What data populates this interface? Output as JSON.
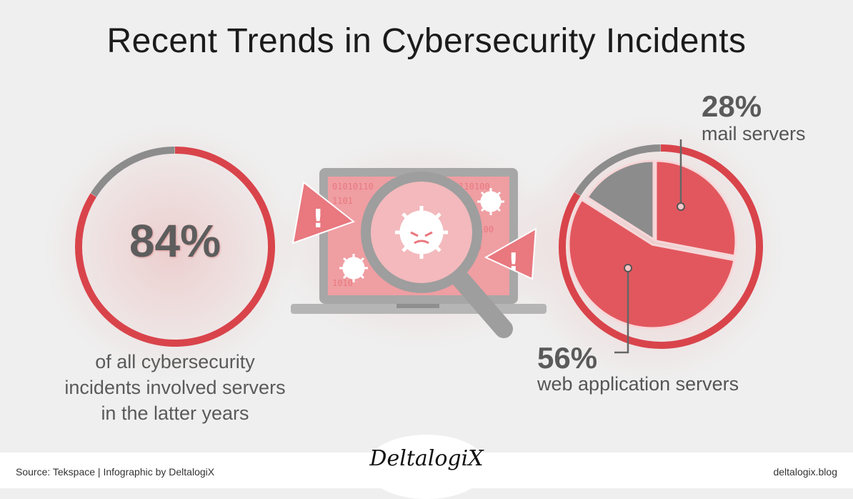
{
  "title": "Recent Trends in Cybersecurity Incidents",
  "left_stat": {
    "value": "84%",
    "caption_lines": [
      "of all cybersecurity",
      "incidents involved servers",
      "in the latter years"
    ]
  },
  "right_labels": {
    "mail": {
      "pct": "28%",
      "name": "mail servers"
    },
    "web": {
      "pct": "56%",
      "name": "web application servers"
    }
  },
  "chart_data": [
    {
      "type": "pie",
      "title": "",
      "labels": [
        "incidents involving servers",
        "other"
      ],
      "values": [
        84,
        16
      ],
      "colors": [
        "#d9444b",
        "#8c8c8c"
      ]
    },
    {
      "type": "pie",
      "title": "",
      "labels": [
        "mail servers",
        "web application servers",
        "other"
      ],
      "values": [
        28,
        56,
        16
      ],
      "colors": [
        "#d9444b",
        "#d9444b",
        "#8c8c8c"
      ]
    }
  ],
  "footer": {
    "source": "Source: Tekspace | Infographic by DeltalogiX",
    "logo": "DeltalogiX",
    "site": "deltalogix.blog"
  },
  "colors": {
    "accent": "#d9444b",
    "gray": "#8c8c8c",
    "light_red": "#f08a8f"
  },
  "icons": [
    "laptop-icon",
    "magnifier-icon",
    "virus-icon",
    "warning-icon"
  ]
}
